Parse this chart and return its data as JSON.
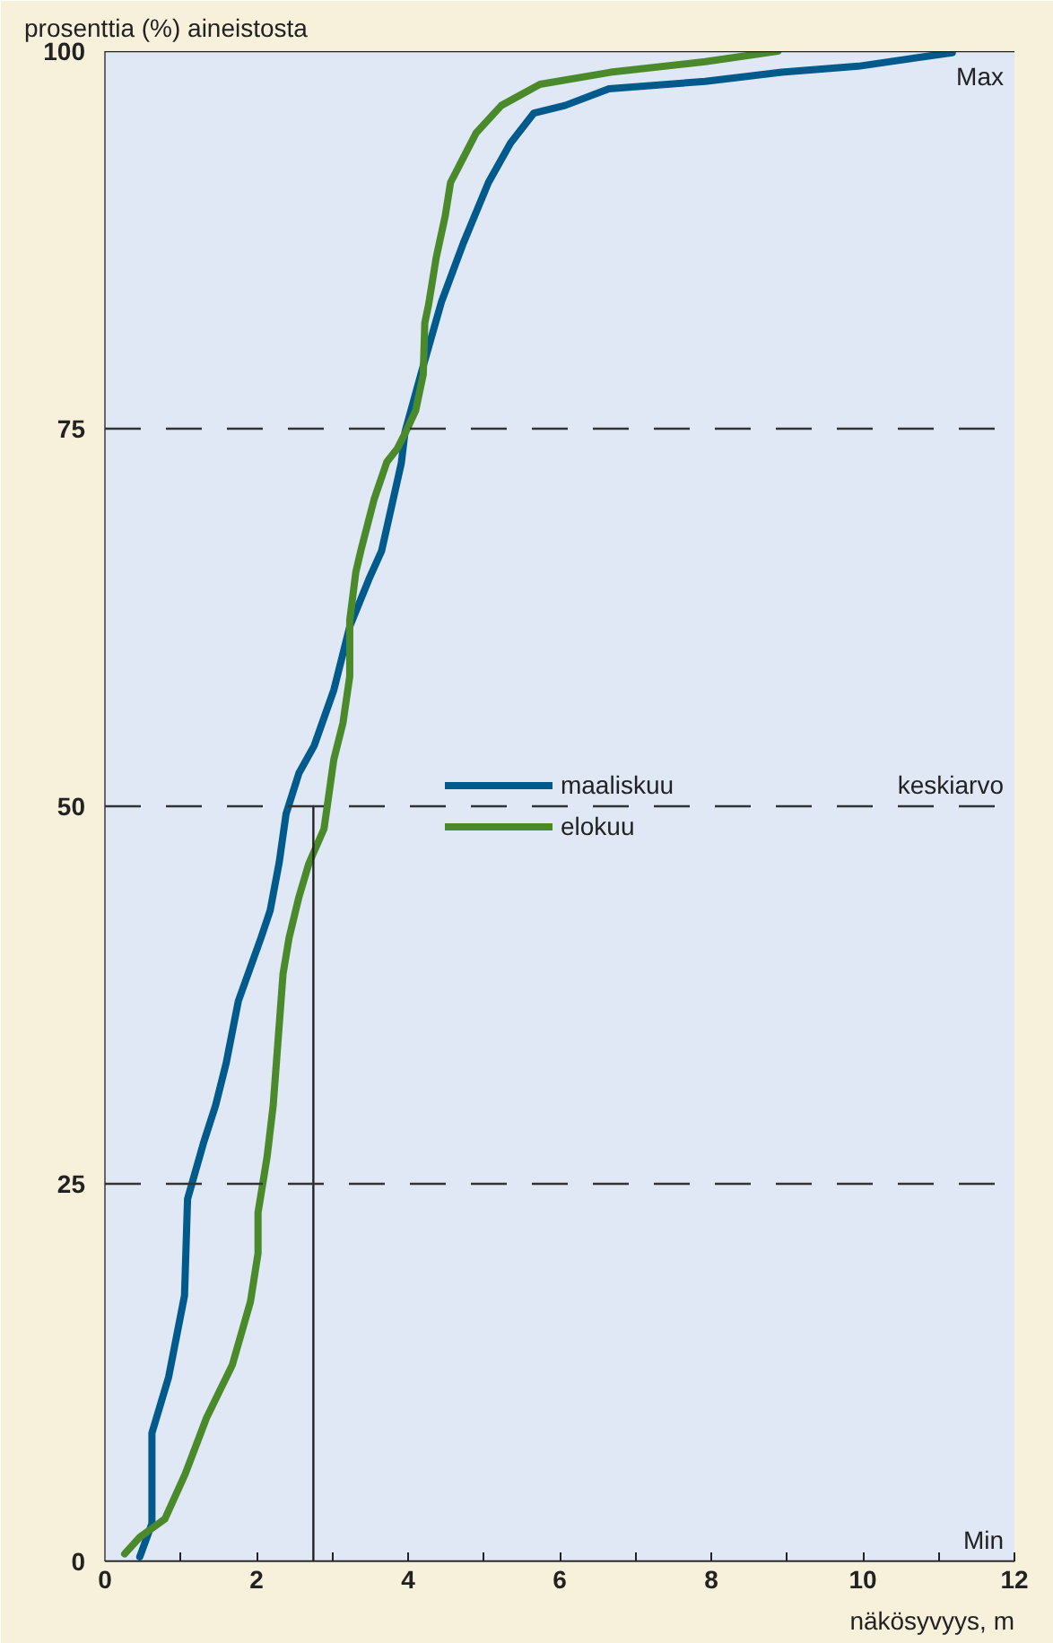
{
  "chart_data": {
    "type": "line",
    "ylabel": "prosenttia (%) aineistosta",
    "xlabel": "näkösyvyys, m",
    "xlim": [
      0,
      12
    ],
    "ylim": [
      0,
      100
    ],
    "xticks": [
      0,
      {
        "value": 1,
        "label": null
      },
      2,
      {
        "value": 3,
        "label": null
      },
      4,
      {
        "value": 5,
        "label": null
      },
      6,
      {
        "value": 7,
        "label": null
      },
      8,
      {
        "value": 9,
        "label": null
      },
      10,
      {
        "value": 11,
        "label": null
      },
      12
    ],
    "yticks": [
      0,
      25,
      50,
      75,
      100
    ],
    "grid": false,
    "legend": "center",
    "line_style": "solid",
    "marker": "none",
    "series": [
      {
        "name": "maaliskuu",
        "color": "#005a8c",
        "x": [
          0.46,
          0.62,
          0.62,
          0.84,
          1.05,
          1.09,
          1.3,
          1.46,
          1.6,
          1.76,
          2.06,
          2.18,
          2.3,
          2.39,
          2.56,
          2.76,
          3.02,
          3.23,
          3.48,
          3.65,
          3.91,
          3.96,
          4.18,
          4.44,
          4.73,
          5.06,
          5.35,
          5.66,
          6.07,
          6.65,
          7.92,
          8.93,
          9.94,
          11.18
        ],
        "values": [
          0.3,
          2.5,
          8.5,
          12.2,
          17.6,
          24.0,
          27.7,
          30.2,
          33.0,
          37.1,
          41.3,
          43.1,
          46.3,
          49.5,
          52.2,
          54.0,
          57.7,
          61.9,
          65.0,
          66.9,
          72.7,
          74.8,
          78.8,
          83.4,
          87.3,
          91.3,
          93.9,
          95.9,
          96.4,
          97.5,
          98.0,
          98.6,
          99.0,
          99.9
        ]
      },
      {
        "name": "elokuu",
        "color": "#4a8a2a",
        "x": [
          0.26,
          0.46,
          0.79,
          1.06,
          1.34,
          1.68,
          1.92,
          2.02,
          2.02,
          2.14,
          2.22,
          2.35,
          2.43,
          2.56,
          2.69,
          2.89,
          2.93,
          3.02,
          3.14,
          3.23,
          3.23,
          3.31,
          3.38,
          3.55,
          3.72,
          3.86,
          3.98,
          4.1,
          4.2,
          4.22,
          4.27,
          4.37,
          4.49,
          4.56,
          4.9,
          5.23,
          5.74,
          6.67,
          7.92,
          8.88
        ],
        "values": [
          0.5,
          1.6,
          2.8,
          5.8,
          9.5,
          13.0,
          17.2,
          20.4,
          23.1,
          26.8,
          30.2,
          38.9,
          41.3,
          44.0,
          46.2,
          48.5,
          49.9,
          53.1,
          55.5,
          58.6,
          62.3,
          65.5,
          67.0,
          70.3,
          72.8,
          73.7,
          74.9,
          76.2,
          78.6,
          82.0,
          83.2,
          86.3,
          89.1,
          91.3,
          94.6,
          96.4,
          97.8,
          98.6,
          99.3,
          100
        ]
      },
      {
        "color": "#222222",
        "x": [
          2.75,
          2.75
        ],
        "values": [
          0,
          50
        ]
      }
    ],
    "ref_lines": [
      {
        "axis": "y",
        "value": 100,
        "label": "Max",
        "color": "#222222",
        "line_style": "solid"
      },
      {
        "axis": "y",
        "value": 75,
        "color": "#333333",
        "line_style": "dashed"
      },
      {
        "axis": "y",
        "value": 50,
        "label": "keskiarvo",
        "color": "#333333",
        "line_style": "dashed"
      },
      {
        "axis": "y",
        "value": 25,
        "color": "#333333",
        "line_style": "dashed"
      },
      {
        "axis": "y",
        "value": 0,
        "label": "Min",
        "color": "#222222",
        "line_style": "solid"
      }
    ]
  }
}
